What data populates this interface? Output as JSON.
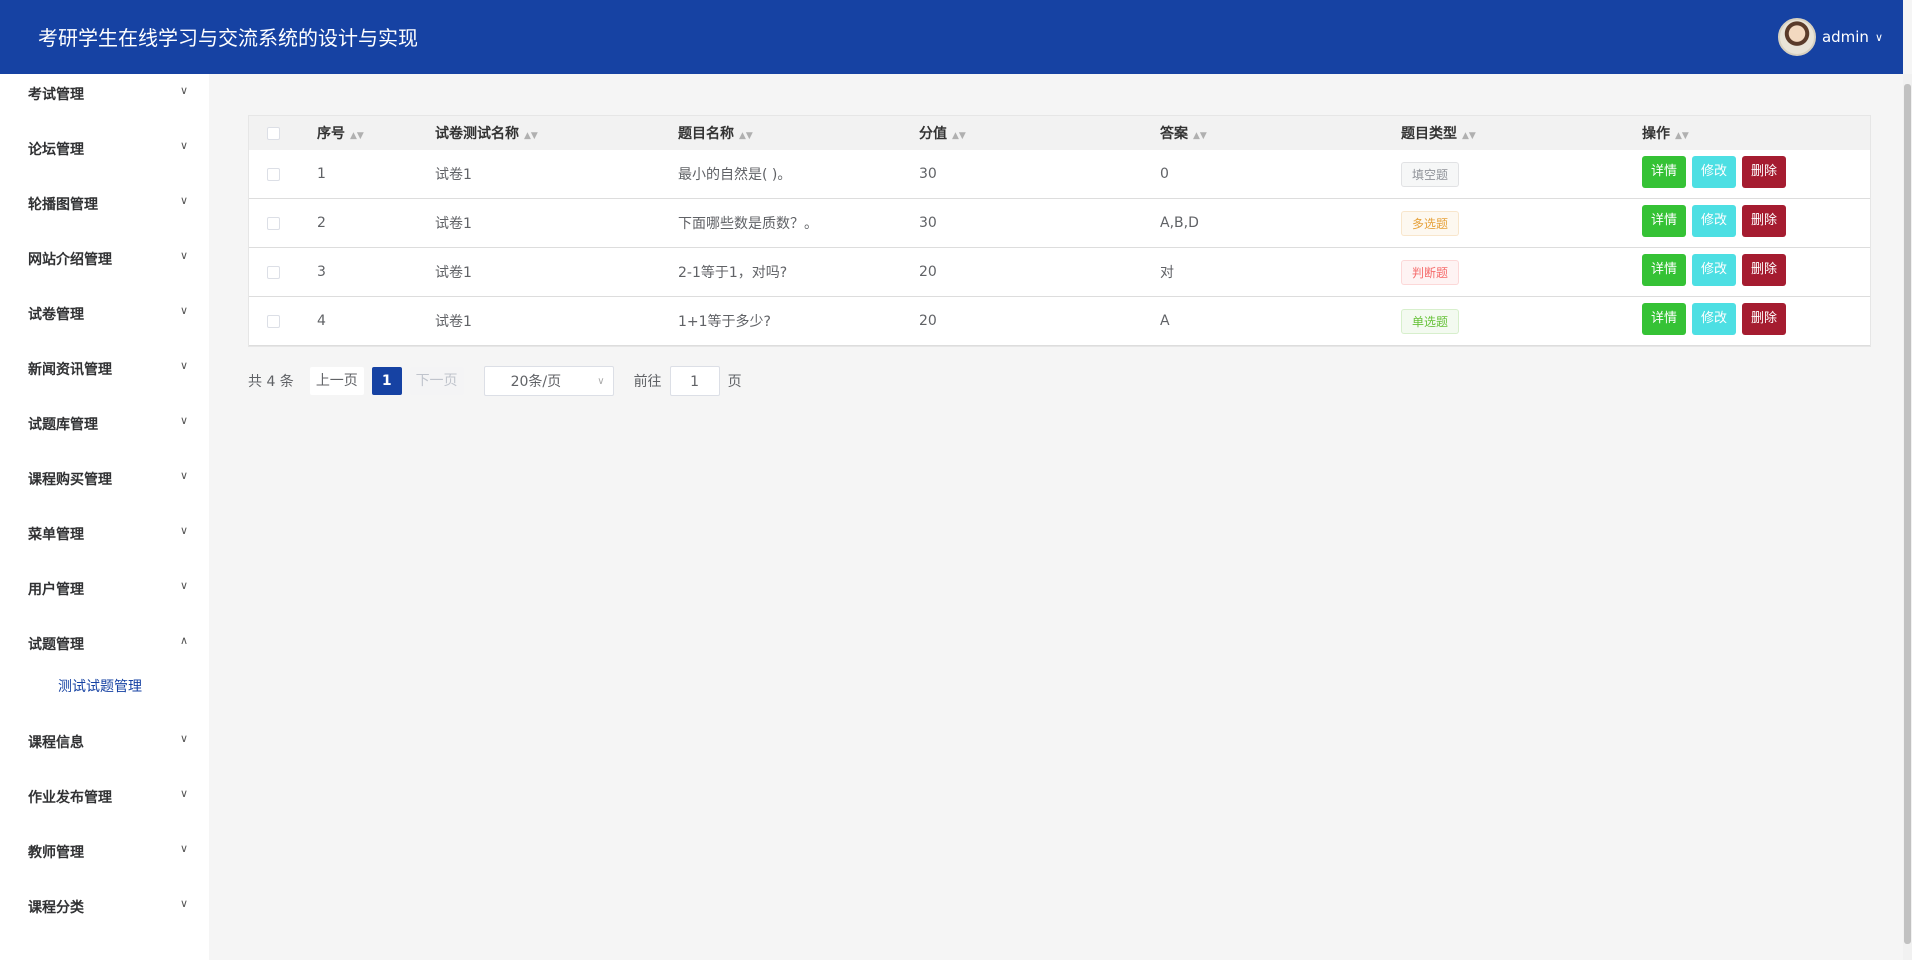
{
  "header": {
    "title": "考研学生在线学习与交流系统的设计与实现",
    "user": "admin"
  },
  "sidebar": {
    "items": [
      "考试管理",
      "论坛管理",
      "轮播图管理",
      "网站介绍管理",
      "试卷管理",
      "新闻资讯管理",
      "试题库管理",
      "课程购买管理",
      "菜单管理",
      "用户管理",
      "试题管理",
      "课程信息",
      "作业发布管理",
      "教师管理",
      "课程分类"
    ],
    "expanded_sub": "测试试题管理"
  },
  "table": {
    "columns": [
      "序号",
      "试卷测试名称",
      "题目名称",
      "分值",
      "答案",
      "题目类型",
      "操作"
    ],
    "rows": [
      {
        "no": "1",
        "paper": "试卷1",
        "question": "最小的自然是( )。",
        "score": "30",
        "answer": "0",
        "type": "填空题",
        "type_color": "#909399"
      },
      {
        "no": "2",
        "paper": "试卷1",
        "question": "下面哪些数是质数？。",
        "score": "30",
        "answer": "A,B,D",
        "type": "多选题",
        "type_color": "#e6a23c"
      },
      {
        "no": "3",
        "paper": "试卷1",
        "question": "2-1等于1，对吗?",
        "score": "20",
        "answer": "对",
        "type": "判断题",
        "type_color": "#f56c6c"
      },
      {
        "no": "4",
        "paper": "试卷1",
        "question": "1+1等于多少?",
        "score": "20",
        "answer": "A",
        "type": "单选题",
        "type_color": "#67c23a"
      }
    ],
    "actions": {
      "detail": "详情",
      "edit": "修改",
      "delete": "删除"
    }
  },
  "pagination": {
    "total": "共 4 条",
    "prev": "上一页",
    "page": "1",
    "next": "下一页",
    "size": "20条/页",
    "goto": "前往",
    "goto_value": "1",
    "page_unit": "页"
  }
}
